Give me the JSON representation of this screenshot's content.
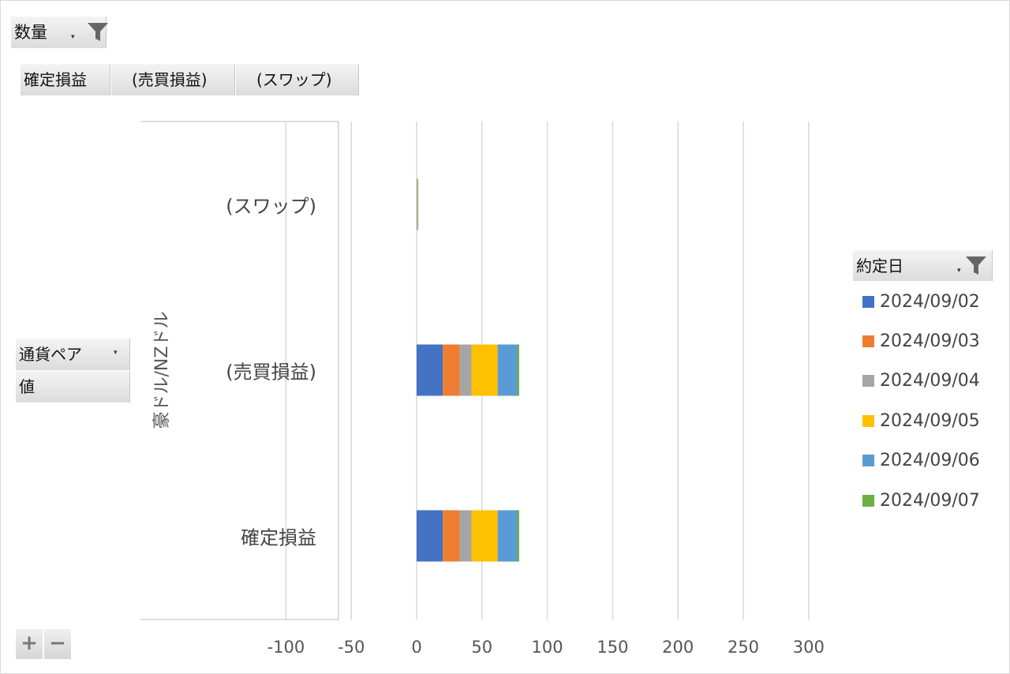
{
  "filter_button": {
    "label": "数量",
    "icon": "filter-icon"
  },
  "column_fields": [
    "確定損益",
    "(売買損益)",
    "(スワップ)"
  ],
  "row_fields": [
    {
      "label": "通貨ペア",
      "has_dropdown": true
    },
    {
      "label": "値",
      "has_dropdown": false
    }
  ],
  "legend_field": {
    "label": "約定日",
    "icon": "filter-icon"
  },
  "zoom_controls": {
    "expand": "+",
    "collapse": "−"
  },
  "colors": {
    "2024/09/02": "#4472C4",
    "2024/09/03": "#ED7D31",
    "2024/09/04": "#A5A5A5",
    "2024/09/05": "#FFC000",
    "2024/09/06": "#5B9BD5",
    "2024/09/07": "#70AD47"
  },
  "chart_data": {
    "type": "bar",
    "orientation": "horizontal",
    "stacked": true,
    "group_label": "豪ドル/NZドル",
    "categories": [
      "(スワップ)",
      "(売買損益)",
      "確定損益"
    ],
    "series": [
      {
        "name": "2024/09/02",
        "values": [
          0.2,
          20,
          20
        ]
      },
      {
        "name": "2024/09/03",
        "values": [
          0.2,
          13,
          13
        ]
      },
      {
        "name": "2024/09/04",
        "values": [
          0.1,
          9,
          9
        ]
      },
      {
        "name": "2024/09/05",
        "values": [
          0.3,
          20,
          20
        ]
      },
      {
        "name": "2024/09/06",
        "values": [
          0.3,
          15,
          15
        ]
      },
      {
        "name": "2024/09/07",
        "values": [
          0.2,
          1.5,
          1.5
        ]
      }
    ],
    "xlim": [
      -100,
      300
    ],
    "xticks": [
      -100,
      -50,
      0,
      50,
      100,
      150,
      200,
      250,
      300
    ],
    "grid": true,
    "legend_position": "right",
    "title": "",
    "xlabel": "",
    "ylabel": ""
  }
}
